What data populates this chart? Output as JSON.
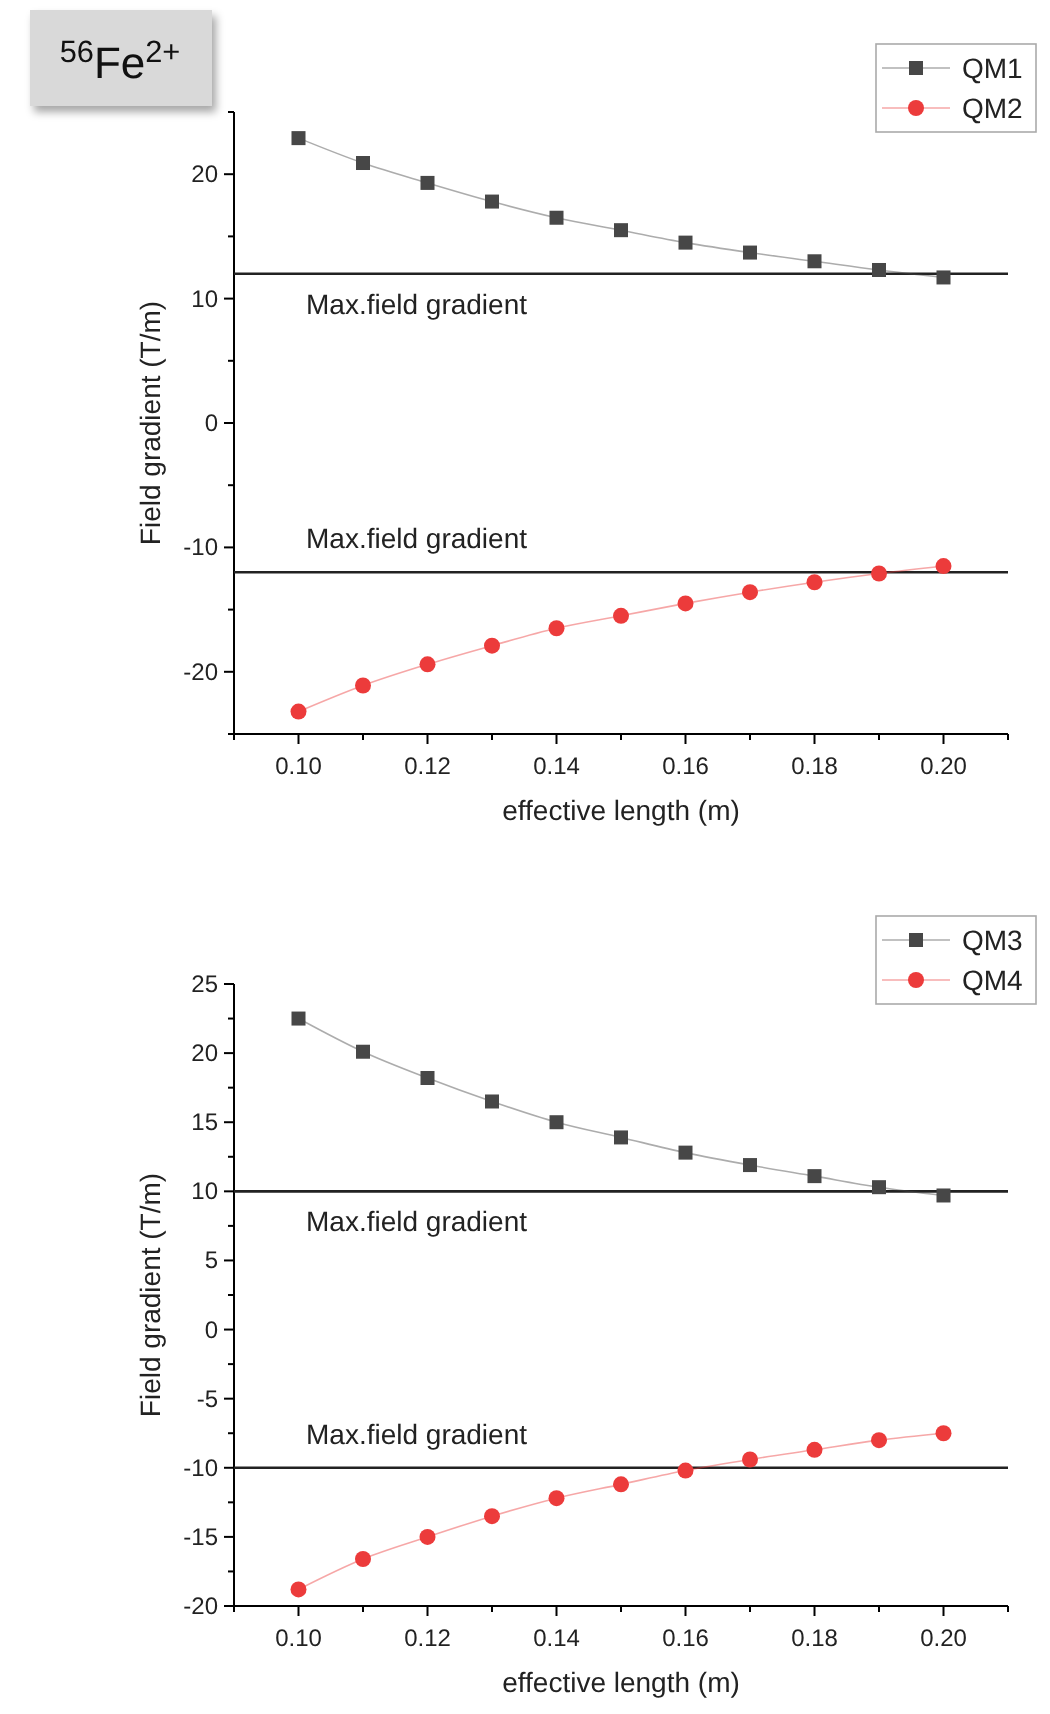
{
  "chart_data": [
    {
      "type": "line",
      "title": "$^{56}$Fe$^{2+}$",
      "xlabel": "effective length (m)",
      "ylabel": "Field gradient (T/m)",
      "x": [
        0.1,
        0.11,
        0.12,
        0.13,
        0.14,
        0.15,
        0.16,
        0.17,
        0.18,
        0.19,
        0.2
      ],
      "series": [
        {
          "name": "QM1",
          "color": "#474747",
          "marker": "square",
          "values": [
            22.9,
            20.9,
            19.3,
            17.8,
            16.5,
            15.5,
            14.5,
            13.7,
            13.0,
            12.3,
            11.7
          ]
        },
        {
          "name": "QM2",
          "color": "#ec3b3b",
          "marker": "circle",
          "values": [
            -23.2,
            -21.1,
            -19.4,
            -17.9,
            -16.5,
            -15.5,
            -14.5,
            -13.6,
            -12.8,
            -12.1,
            -11.5
          ]
        }
      ],
      "xlim": [
        0.09,
        0.21
      ],
      "xticks": [
        {
          "value": 0.09,
          "label": null
        },
        {
          "value": 0.1,
          "label": "0.10"
        },
        {
          "value": 0.11,
          "label": null
        },
        {
          "value": 0.12,
          "label": "0.12"
        },
        {
          "value": 0.13,
          "label": null
        },
        {
          "value": 0.14,
          "label": "0.14"
        },
        {
          "value": 0.15,
          "label": null
        },
        {
          "value": 0.16,
          "label": "0.16"
        },
        {
          "value": 0.17,
          "label": null
        },
        {
          "value": 0.18,
          "label": "0.18"
        },
        {
          "value": 0.19,
          "label": null
        },
        {
          "value": 0.2,
          "label": "0.20"
        },
        {
          "value": 0.21,
          "label": null
        }
      ],
      "ylim": [
        -25,
        25
      ],
      "yticks": [
        {
          "value": -25,
          "label": null
        },
        -20,
        {
          "value": -15,
          "label": null
        },
        -10,
        {
          "value": -5,
          "label": null
        },
        0,
        {
          "value": 5,
          "label": null
        },
        10,
        {
          "value": 15,
          "label": null
        },
        20,
        {
          "value": 25,
          "label": null
        }
      ],
      "ref_lines": [
        {
          "axis": "y",
          "value": 12,
          "label": "Max.field gradient",
          "color": "#222222"
        },
        {
          "axis": "y",
          "value": -12,
          "label": "Max.field gradient",
          "color": "#222222"
        }
      ],
      "legend": "top right",
      "grid": false
    },
    {
      "type": "line",
      "xlabel": "effective length (m)",
      "ylabel": "Field gradient (T/m)",
      "x": [
        0.1,
        0.11,
        0.12,
        0.13,
        0.14,
        0.15,
        0.16,
        0.17,
        0.18,
        0.19,
        0.2
      ],
      "series": [
        {
          "name": "QM3",
          "color": "#474747",
          "marker": "square",
          "values": [
            22.5,
            20.1,
            18.2,
            16.5,
            15.0,
            13.9,
            12.8,
            11.9,
            11.1,
            10.3,
            9.7
          ]
        },
        {
          "name": "QM4",
          "color": "#ec3b3b",
          "marker": "circle",
          "values": [
            -18.8,
            -16.6,
            -15.0,
            -13.5,
            -12.2,
            -11.2,
            -10.2,
            -9.4,
            -8.7,
            -8.0,
            -7.5
          ]
        }
      ],
      "xlim": [
        0.09,
        0.21
      ],
      "xticks": [
        {
          "value": 0.09,
          "label": null
        },
        {
          "value": 0.1,
          "label": "0.10"
        },
        {
          "value": 0.11,
          "label": null
        },
        {
          "value": 0.12,
          "label": "0.12"
        },
        {
          "value": 0.13,
          "label": null
        },
        {
          "value": 0.14,
          "label": "0.14"
        },
        {
          "value": 0.15,
          "label": null
        },
        {
          "value": 0.16,
          "label": "0.16"
        },
        {
          "value": 0.17,
          "label": null
        },
        {
          "value": 0.18,
          "label": "0.18"
        },
        {
          "value": 0.19,
          "label": null
        },
        {
          "value": 0.2,
          "label": "0.20"
        },
        {
          "value": 0.21,
          "label": null
        }
      ],
      "ylim": [
        -20,
        25
      ],
      "yticks": [
        -20,
        {
          "value": -17.5,
          "label": null
        },
        -15,
        {
          "value": -12.5,
          "label": null
        },
        -10,
        {
          "value": -7.5,
          "label": null
        },
        -5,
        {
          "value": -2.5,
          "label": null
        },
        0,
        {
          "value": 2.5,
          "label": null
        },
        5,
        {
          "value": 7.5,
          "label": null
        },
        10,
        {
          "value": 12.5,
          "label": null
        },
        15,
        {
          "value": 17.5,
          "label": null
        },
        20,
        {
          "value": 22.5,
          "label": null
        },
        25
      ],
      "ref_lines": [
        {
          "axis": "y",
          "value": 10,
          "label": "Max.field gradient",
          "color": "#222222"
        },
        {
          "axis": "y",
          "value": -10,
          "label": "Max.field gradient",
          "color": "#222222"
        }
      ],
      "legend": "top right",
      "grid": false
    }
  ]
}
